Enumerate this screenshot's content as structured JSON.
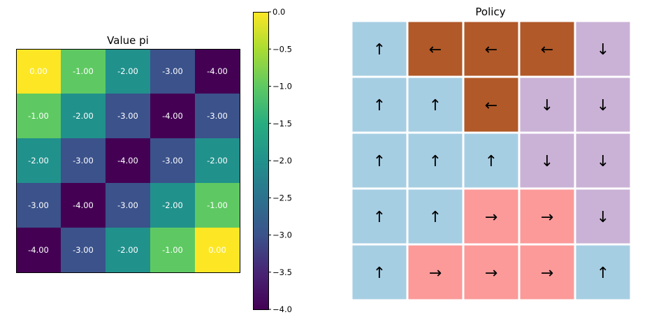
{
  "chart_data": [
    {
      "type": "heatmap",
      "title": "Value pi",
      "rows": 5,
      "cols": 5,
      "values": [
        [
          0.0,
          -1.0,
          -2.0,
          -3.0,
          -4.0
        ],
        [
          -1.0,
          -2.0,
          -3.0,
          -4.0,
          -3.0
        ],
        [
          -2.0,
          -3.0,
          -4.0,
          -3.0,
          -2.0
        ],
        [
          -3.0,
          -4.0,
          -3.0,
          -2.0,
          -1.0
        ],
        [
          -4.0,
          -3.0,
          -2.0,
          -1.0,
          0.0
        ]
      ],
      "cell_labels": [
        [
          "0.00",
          "-1.00",
          "-2.00",
          "-3.00",
          "-4.00"
        ],
        [
          "-1.00",
          "-2.00",
          "-3.00",
          "-4.00",
          "-3.00"
        ],
        [
          "-2.00",
          "-3.00",
          "-4.00",
          "-3.00",
          "-2.00"
        ],
        [
          "-3.00",
          "-4.00",
          "-3.00",
          "-2.00",
          "-1.00"
        ],
        [
          "-4.00",
          "-3.00",
          "-2.00",
          "-1.00",
          "0.00"
        ]
      ],
      "colormap": "viridis",
      "vmin": -4.0,
      "vmax": 0.0,
      "colorbar": {
        "ticks": [
          0.0,
          -0.5,
          -1.0,
          -1.5,
          -2.0,
          -2.5,
          -3.0,
          -3.5,
          -4.0
        ],
        "tick_labels": [
          "0.0",
          "−0.5",
          "−1.0",
          "−1.5",
          "−2.0",
          "−2.5",
          "−3.0",
          "−3.5",
          "−4.0"
        ]
      },
      "grid": false
    },
    {
      "type": "table",
      "title": "Policy",
      "rows": 5,
      "cols": 5,
      "arrows": [
        [
          "↑",
          "←",
          "←",
          "←",
          "↓"
        ],
        [
          "↑",
          "↑",
          "←",
          "↓",
          "↓"
        ],
        [
          "↑",
          "↑",
          "↑",
          "↓",
          "↓"
        ],
        [
          "↑",
          "↑",
          "→",
          "→",
          "↓"
        ],
        [
          "↑",
          "→",
          "→",
          "→",
          "↑"
        ]
      ],
      "colors": {
        "↑": "#a6cee3",
        "←": "#b15928",
        "↓": "#cab2d6",
        "→": "#fb9a99"
      }
    }
  ]
}
